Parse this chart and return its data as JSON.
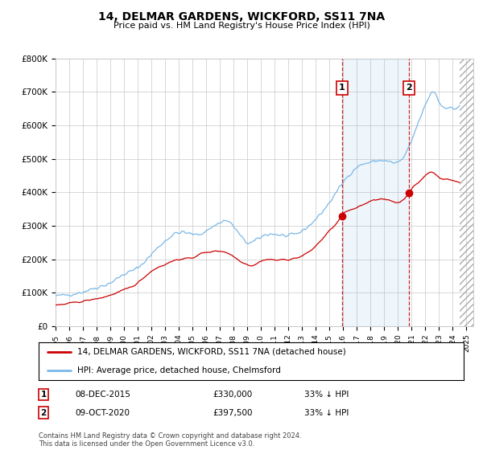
{
  "title": "14, DELMAR GARDENS, WICKFORD, SS11 7NA",
  "subtitle": "Price paid vs. HM Land Registry's House Price Index (HPI)",
  "legend_line1": "14, DELMAR GARDENS, WICKFORD, SS11 7NA (detached house)",
  "legend_line2": "HPI: Average price, detached house, Chelmsford",
  "annotation1_label": "1",
  "annotation1_date": "08-DEC-2015",
  "annotation1_price": "£330,000",
  "annotation1_hpi": "33% ↓ HPI",
  "annotation1_year": 2015.92,
  "annotation1_value": 330000,
  "annotation2_label": "2",
  "annotation2_date": "09-OCT-2020",
  "annotation2_price": "£397,500",
  "annotation2_hpi": "33% ↓ HPI",
  "annotation2_year": 2020.78,
  "annotation2_value": 397500,
  "footnote": "Contains HM Land Registry data © Crown copyright and database right 2024.\nThis data is licensed under the Open Government Licence v3.0.",
  "hpi_color": "#7ab8e8",
  "price_color": "#cc0000",
  "dashed_color": "#cc0000",
  "ylim": [
    0,
    800000
  ],
  "yticks": [
    0,
    100000,
    200000,
    300000,
    400000,
    500000,
    600000,
    700000,
    800000
  ],
  "ytick_labels": [
    "£0",
    "£100K",
    "£200K",
    "£300K",
    "£400K",
    "£500K",
    "£600K",
    "£700K",
    "£800K"
  ],
  "xlim_left": 1995,
  "xlim_right": 2025.5
}
